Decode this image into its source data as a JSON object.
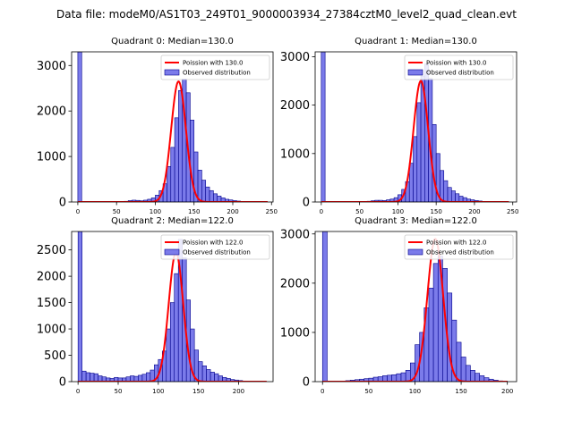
{
  "suptitle": "Data file: modeM0/AS1T03_249T01_9000003934_27384cztM0_level2_quad_clean.evt",
  "colors": {
    "bar_fill": "#7b7bea",
    "bar_edge": "#00008b",
    "curve": "#ff0000"
  },
  "chart_data": [
    {
      "type": "bar",
      "title": "Quadrant 0: Median=130.0",
      "legend": {
        "placement": "top-right",
        "curve_label": "Poission with 130.0",
        "hist_label": "Observed distribution"
      },
      "xlim": [
        -8,
        252
      ],
      "ylim": [
        0,
        3300
      ],
      "xticks": [
        0,
        50,
        100,
        150,
        200,
        250
      ],
      "yticks": [
        0,
        1000,
        2000,
        3000
      ],
      "bin_width": 5,
      "bins": [
        [
          0,
          3300
        ],
        [
          60,
          15
        ],
        [
          65,
          30
        ],
        [
          70,
          40
        ],
        [
          75,
          35
        ],
        [
          80,
          25
        ],
        [
          85,
          40
        ],
        [
          90,
          60
        ],
        [
          95,
          90
        ],
        [
          100,
          150
        ],
        [
          105,
          250
        ],
        [
          110,
          400
        ],
        [
          115,
          780
        ],
        [
          120,
          1200
        ],
        [
          125,
          1850
        ],
        [
          130,
          2450
        ],
        [
          135,
          2700
        ],
        [
          140,
          2400
        ],
        [
          145,
          1800
        ],
        [
          150,
          1100
        ],
        [
          155,
          700
        ],
        [
          160,
          480
        ],
        [
          165,
          330
        ],
        [
          170,
          250
        ],
        [
          175,
          180
        ],
        [
          180,
          130
        ],
        [
          185,
          90
        ],
        [
          190,
          60
        ],
        [
          195,
          45
        ],
        [
          200,
          30
        ],
        [
          205,
          20
        ],
        [
          210,
          10
        ],
        [
          215,
          8
        ]
      ],
      "curve": {
        "mean": 130,
        "peak": 2650,
        "sigma": 9.5,
        "x_range": [
          0,
          245
        ]
      }
    },
    {
      "type": "bar",
      "title": "Quadrant 1: Median=130.0",
      "legend": {
        "placement": "top-right",
        "curve_label": "Poission with 130.0",
        "hist_label": "Observed distribution"
      },
      "xlim": [
        -8,
        255
      ],
      "ylim": [
        0,
        3100
      ],
      "xticks": [
        0,
        50,
        100,
        150,
        200,
        250
      ],
      "yticks": [
        0,
        1000,
        2000,
        3000
      ],
      "bin_width": 5,
      "bins": [
        [
          0,
          3100
        ],
        [
          60,
          15
        ],
        [
          65,
          25
        ],
        [
          70,
          35
        ],
        [
          75,
          35
        ],
        [
          80,
          30
        ],
        [
          85,
          45
        ],
        [
          90,
          60
        ],
        [
          95,
          90
        ],
        [
          100,
          150
        ],
        [
          105,
          260
        ],
        [
          110,
          420
        ],
        [
          115,
          800
        ],
        [
          120,
          1350
        ],
        [
          125,
          2050
        ],
        [
          130,
          2600
        ],
        [
          135,
          2850
        ],
        [
          140,
          2550
        ],
        [
          145,
          1600
        ],
        [
          150,
          1000
        ],
        [
          155,
          650
        ],
        [
          160,
          440
        ],
        [
          165,
          300
        ],
        [
          170,
          230
        ],
        [
          175,
          170
        ],
        [
          180,
          120
        ],
        [
          185,
          90
        ],
        [
          190,
          60
        ],
        [
          195,
          45
        ],
        [
          200,
          30
        ],
        [
          205,
          20
        ],
        [
          210,
          12
        ],
        [
          215,
          8
        ]
      ],
      "curve": {
        "mean": 130,
        "peak": 2500,
        "sigma": 9.5,
        "x_range": [
          0,
          245
        ]
      }
    },
    {
      "type": "bar",
      "title": "Quadrant 2: Median=122.0",
      "legend": {
        "placement": "top-right",
        "curve_label": "Poission with 122.0",
        "hist_label": "Observed distribution"
      },
      "xlim": [
        -8,
        243
      ],
      "ylim": [
        0,
        2850
      ],
      "xticks": [
        0,
        50,
        100,
        150,
        200
      ],
      "yticks": [
        0,
        500,
        1000,
        1500,
        2000,
        2500
      ],
      "bin_width": 5,
      "bins": [
        [
          0,
          2850
        ],
        [
          5,
          200
        ],
        [
          10,
          170
        ],
        [
          15,
          160
        ],
        [
          20,
          150
        ],
        [
          25,
          110
        ],
        [
          30,
          90
        ],
        [
          35,
          70
        ],
        [
          40,
          60
        ],
        [
          45,
          80
        ],
        [
          50,
          70
        ],
        [
          55,
          70
        ],
        [
          60,
          90
        ],
        [
          65,
          110
        ],
        [
          70,
          100
        ],
        [
          75,
          120
        ],
        [
          80,
          140
        ],
        [
          85,
          170
        ],
        [
          90,
          220
        ],
        [
          95,
          320
        ],
        [
          100,
          420
        ],
        [
          105,
          580
        ],
        [
          110,
          1000
        ],
        [
          115,
          1500
        ],
        [
          120,
          2050
        ],
        [
          125,
          2700
        ],
        [
          130,
          2350
        ],
        [
          135,
          1550
        ],
        [
          140,
          1000
        ],
        [
          145,
          600
        ],
        [
          150,
          380
        ],
        [
          155,
          300
        ],
        [
          160,
          230
        ],
        [
          165,
          180
        ],
        [
          170,
          150
        ],
        [
          175,
          110
        ],
        [
          180,
          80
        ],
        [
          185,
          60
        ],
        [
          190,
          40
        ],
        [
          195,
          30
        ],
        [
          200,
          20
        ],
        [
          205,
          12
        ],
        [
          210,
          6
        ],
        [
          215,
          4
        ]
      ],
      "curve": {
        "mean": 122,
        "peak": 2450,
        "sigma": 9.0,
        "x_range": [
          0,
          235
        ]
      }
    },
    {
      "type": "bar",
      "title": "Quadrant 3: Median=122.0",
      "legend": {
        "placement": "top-right",
        "curve_label": "Poission with 122.0",
        "hist_label": "Observed distribution"
      },
      "xlim": [
        -8,
        210
      ],
      "ylim": [
        0,
        3050
      ],
      "xticks": [
        0,
        50,
        100,
        150,
        200
      ],
      "yticks": [
        0,
        1000,
        2000,
        3000
      ],
      "bin_width": 5,
      "bins": [
        [
          0,
          3050
        ],
        [
          25,
          20
        ],
        [
          30,
          30
        ],
        [
          35,
          40
        ],
        [
          40,
          50
        ],
        [
          45,
          60
        ],
        [
          50,
          70
        ],
        [
          55,
          90
        ],
        [
          60,
          100
        ],
        [
          65,
          120
        ],
        [
          70,
          130
        ],
        [
          75,
          140
        ],
        [
          80,
          160
        ],
        [
          85,
          180
        ],
        [
          90,
          230
        ],
        [
          95,
          380
        ],
        [
          100,
          750
        ],
        [
          105,
          1000
        ],
        [
          110,
          1500
        ],
        [
          115,
          1900
        ],
        [
          120,
          2400
        ],
        [
          125,
          2550
        ],
        [
          130,
          2300
        ],
        [
          135,
          1800
        ],
        [
          140,
          1250
        ],
        [
          145,
          800
        ],
        [
          150,
          500
        ],
        [
          155,
          330
        ],
        [
          160,
          230
        ],
        [
          165,
          170
        ],
        [
          170,
          120
        ],
        [
          175,
          80
        ],
        [
          180,
          50
        ],
        [
          185,
          30
        ],
        [
          190,
          15
        ],
        [
          195,
          8
        ]
      ],
      "curve": {
        "mean": 122,
        "peak": 2900,
        "sigma": 8.5,
        "x_range": [
          0,
          200
        ]
      }
    }
  ]
}
